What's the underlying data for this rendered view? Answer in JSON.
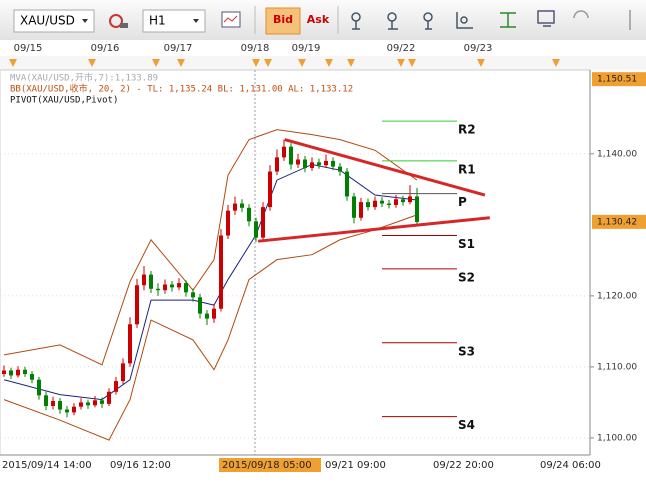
{
  "toolbar": {
    "symbol": "XAU/USD",
    "timeframe": "H1",
    "bid": "Bid",
    "ask": "Ask"
  },
  "chart_data": {
    "type": "candlestick",
    "dates": [
      "09/15",
      "09/16",
      "09/17",
      "09/18",
      "09/19",
      "09/22",
      "09/23"
    ],
    "time_labels": [
      "2015/09/14 14:00",
      "09/16 12:00",
      "2015/09/18 05:00",
      "09/21 09:00",
      "09/22 20:00",
      "09/24 06:00"
    ],
    "indicator_legend": [
      "MVA(XAU/USD,开市,7):1,133.89",
      "BB(XAU/USD,收市, 20, 2) - TL: 1,135.24  BL: 1,131.00  AL: 1,133.12",
      "PIVOT(XAU/USD,Pivot)"
    ],
    "ylim": [
      1097.6,
      1151.8
    ],
    "yticks": [
      {
        "value": 1140,
        "label": "1,140.00"
      },
      {
        "value": 1120,
        "label": "1,120.00"
      },
      {
        "value": 1110,
        "label": "1,110.00"
      },
      {
        "value": 1100,
        "label": "1,100.00"
      }
    ],
    "price_tags": [
      {
        "value": 1150.51,
        "label": "1,150.51"
      },
      {
        "value": 1130.42,
        "label": "1,130.42"
      }
    ],
    "up_color": "#cc0000",
    "down_color": "#008000",
    "ohlc": [
      [
        1109.0,
        1110.2,
        1108.6,
        1109.5
      ],
      [
        1109.5,
        1109.9,
        1108.3,
        1108.8
      ],
      [
        1108.8,
        1110.1,
        1108.5,
        1109.6
      ],
      [
        1109.6,
        1110.0,
        1108.6,
        1109.0
      ],
      [
        1109.0,
        1109.4,
        1107.7,
        1108.2
      ],
      [
        1108.2,
        1108.6,
        1105.4,
        1106.0
      ],
      [
        1106.0,
        1106.5,
        1103.9,
        1104.5
      ],
      [
        1104.5,
        1105.8,
        1104.0,
        1105.2
      ],
      [
        1105.2,
        1105.6,
        1103.4,
        1104.0
      ],
      [
        1104.0,
        1104.5,
        1102.9,
        1103.6
      ],
      [
        1103.6,
        1104.9,
        1103.2,
        1104.4
      ],
      [
        1104.4,
        1105.6,
        1104.0,
        1105.0
      ],
      [
        1105.0,
        1105.4,
        1104.1,
        1104.6
      ],
      [
        1104.6,
        1105.9,
        1104.3,
        1105.3
      ],
      [
        1105.3,
        1105.7,
        1104.2,
        1104.8
      ],
      [
        1104.8,
        1107.0,
        1104.5,
        1106.5
      ],
      [
        1106.5,
        1108.6,
        1106.1,
        1108.0
      ],
      [
        1108.0,
        1111.2,
        1107.6,
        1110.5
      ],
      [
        1110.5,
        1117.0,
        1110.0,
        1116.0
      ],
      [
        1116.0,
        1122.4,
        1115.5,
        1121.5
      ],
      [
        1121.5,
        1124.2,
        1120.8,
        1123.0
      ],
      [
        1123.0,
        1123.5,
        1120.4,
        1121.0
      ],
      [
        1121.0,
        1121.8,
        1120.0,
        1120.8
      ],
      [
        1120.8,
        1122.3,
        1120.3,
        1121.6
      ],
      [
        1121.6,
        1122.1,
        1120.6,
        1121.2
      ],
      [
        1121.2,
        1122.5,
        1120.8,
        1121.8
      ],
      [
        1121.8,
        1122.2,
        1119.9,
        1120.5
      ],
      [
        1120.5,
        1121.0,
        1119.2,
        1119.8
      ],
      [
        1119.8,
        1120.3,
        1116.8,
        1117.5
      ],
      [
        1117.5,
        1118.0,
        1115.9,
        1116.8
      ],
      [
        1116.8,
        1118.9,
        1116.2,
        1118.2
      ],
      [
        1118.2,
        1129.4,
        1117.8,
        1128.5
      ],
      [
        1128.5,
        1132.8,
        1128.0,
        1132.0
      ],
      [
        1132.0,
        1134.0,
        1131.4,
        1133.0
      ],
      [
        1133.0,
        1133.6,
        1131.8,
        1132.4
      ],
      [
        1132.4,
        1132.9,
        1129.8,
        1130.5
      ],
      [
        1130.5,
        1131.0,
        1127.6,
        1128.2
      ],
      [
        1128.2,
        1133.2,
        1127.8,
        1132.5
      ],
      [
        1132.5,
        1138.4,
        1132.0,
        1137.5
      ],
      [
        1137.5,
        1140.6,
        1137.0,
        1139.5
      ],
      [
        1139.5,
        1142.0,
        1139.0,
        1141.0
      ],
      [
        1141.0,
        1141.5,
        1137.8,
        1138.5
      ],
      [
        1138.5,
        1140.0,
        1138.0,
        1139.2
      ],
      [
        1139.2,
        1139.7,
        1137.4,
        1138.0
      ],
      [
        1138.0,
        1139.5,
        1137.6,
        1138.8
      ],
      [
        1138.8,
        1139.3,
        1137.9,
        1138.4
      ],
      [
        1138.4,
        1139.9,
        1138.0,
        1139.0
      ],
      [
        1139.0,
        1139.5,
        1137.7,
        1138.2
      ],
      [
        1138.2,
        1138.7,
        1136.9,
        1137.5
      ],
      [
        1137.5,
        1138.0,
        1133.4,
        1134.0
      ],
      [
        1134.0,
        1134.5,
        1130.2,
        1131.0
      ],
      [
        1131.0,
        1133.8,
        1130.6,
        1133.2
      ],
      [
        1133.2,
        1133.7,
        1132.0,
        1132.5
      ],
      [
        1132.5,
        1134.0,
        1132.1,
        1133.4
      ],
      [
        1133.4,
        1133.9,
        1132.5,
        1133.0
      ],
      [
        1133.0,
        1133.5,
        1132.3,
        1132.8
      ],
      [
        1132.8,
        1134.2,
        1132.4,
        1133.6
      ],
      [
        1133.6,
        1134.1,
        1132.7,
        1133.2
      ],
      [
        1133.2,
        1135.6,
        1132.9,
        1134.0
      ],
      [
        1134.0,
        1135.2,
        1129.8,
        1130.4
      ]
    ],
    "lines": [
      {
        "color": "#b04a10",
        "x": [
          0,
          8,
          14,
          18,
          21,
          27,
          30,
          32,
          35,
          39,
          44,
          48,
          53,
          59
        ],
        "values": [
          1111.7,
          1113.1,
          1110.3,
          1122.0,
          1127.9,
          1120.8,
          1125.1,
          1137.0,
          1142.0,
          1143.4,
          1142.7,
          1142.0,
          1140.5,
          1136.3
        ]
      },
      {
        "color": "#b04a10",
        "x": [
          0,
          8,
          15,
          18,
          21,
          27,
          30,
          32,
          35,
          39,
          44,
          48,
          53,
          59
        ],
        "values": [
          1105.4,
          1102.5,
          1099.7,
          1105.4,
          1116.6,
          1113.8,
          1109.6,
          1113.8,
          1122.3,
          1125.1,
          1125.8,
          1127.9,
          1129.3,
          1131.4
        ]
      },
      {
        "color": "#1a237e",
        "x": [
          0,
          8,
          14,
          18,
          21,
          27,
          30,
          32,
          36,
          39,
          44,
          48,
          53,
          59
        ],
        "values": [
          1108.2,
          1106.1,
          1105.4,
          1108.2,
          1119.4,
          1119.4,
          1118.7,
          1122.3,
          1128.6,
          1136.3,
          1138.5,
          1137.7,
          1134.2,
          1133.5
        ]
      }
    ],
    "pivots": [
      {
        "label": "R2",
        "value": 1144.6,
        "color": "#33cc33"
      },
      {
        "label": "R1",
        "value": 1139.0,
        "color": "#33cc33"
      },
      {
        "label": "P",
        "value": 1134.4,
        "color": "#555555"
      },
      {
        "label": "S1",
        "value": 1128.5,
        "color": "#aa0000"
      },
      {
        "label": "S2",
        "value": 1123.8,
        "color": "#aa0000"
      },
      {
        "label": "S3",
        "value": 1113.4,
        "color": "#aa0000"
      },
      {
        "label": "S4",
        "value": 1103.0,
        "color": "#aa0000"
      }
    ],
    "trendlines": [
      {
        "x": [
          40.1,
          68.7
        ],
        "values": [
          1142.0,
          1134.2
        ]
      },
      {
        "x": [
          36.3,
          69.4
        ],
        "values": [
          1127.7,
          1131.0
        ]
      }
    ],
    "trend_color": "#d62728"
  }
}
